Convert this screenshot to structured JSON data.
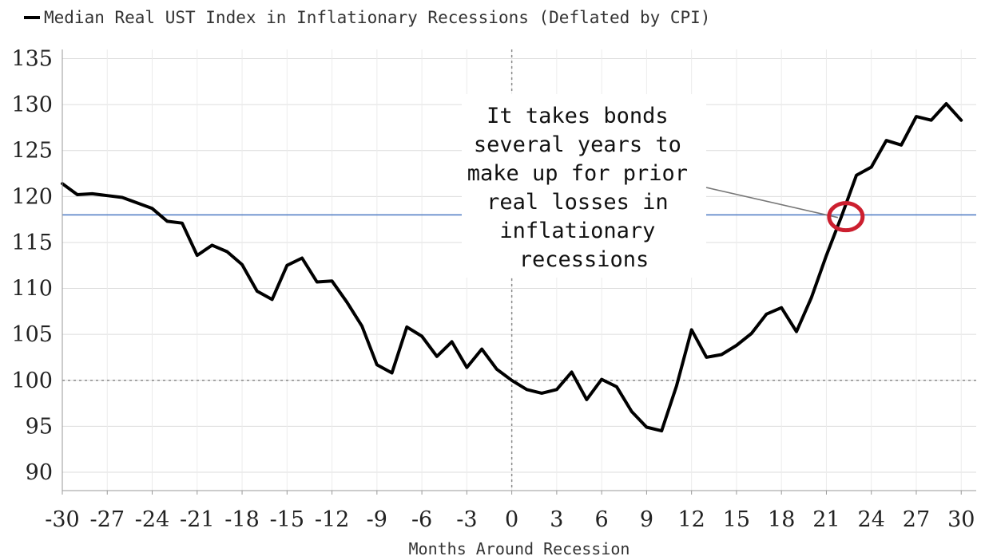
{
  "chart_data": {
    "type": "line",
    "title": "",
    "legend": {
      "position": "top-left",
      "entries": [
        {
          "label": "Median Real UST Index in Inflationary Recessions (Deflated by CPI)",
          "color": "#000000"
        }
      ]
    },
    "xlabel": "Months Around Recession",
    "ylabel": "",
    "xlim": [
      -30,
      31
    ],
    "ylim": [
      88,
      136
    ],
    "xticks": [
      -30,
      -27,
      -24,
      -21,
      -18,
      -15,
      -12,
      -9,
      -6,
      -3,
      0,
      3,
      6,
      9,
      12,
      15,
      18,
      21,
      24,
      27,
      30
    ],
    "xtick_labels": [
      "-30",
      "-27",
      "-24",
      "-21",
      "-18",
      "-15",
      "-12",
      "-9",
      "-6",
      "-3",
      "0",
      "3",
      "6",
      "9",
      "12",
      "15",
      "18",
      "21",
      "24",
      "27",
      "30"
    ],
    "yticks": [
      90,
      95,
      100,
      105,
      110,
      115,
      120,
      125,
      130,
      135
    ],
    "ytick_labels": [
      "90",
      "95",
      "100",
      "105",
      "110",
      "115",
      "120",
      "125",
      "130",
      "135"
    ],
    "grid": true,
    "series": [
      {
        "name": "Median Real UST Index in Inflationary Recessions (Deflated by CPI)",
        "color": "#000000",
        "x": [
          -30,
          -29,
          -28,
          -27,
          -26,
          -25,
          -24,
          -23,
          -22,
          -21,
          -20,
          -19,
          -18,
          -17,
          -16,
          -15,
          -14,
          -13,
          -12,
          -11,
          -10,
          -9,
          -8,
          -7,
          -6,
          -5,
          -4,
          -3,
          -2,
          -1,
          0,
          1,
          2,
          3,
          4,
          5,
          6,
          7,
          8,
          9,
          10,
          11,
          12,
          13,
          14,
          15,
          16,
          17,
          18,
          19,
          20,
          21,
          22,
          23,
          24,
          25,
          26,
          27,
          28,
          29,
          30
        ],
        "values": [
          121.4,
          120.2,
          120.3,
          120.1,
          119.9,
          119.3,
          118.7,
          117.3,
          117.1,
          113.6,
          114.7,
          114.0,
          112.6,
          109.7,
          108.8,
          112.5,
          113.3,
          110.7,
          110.8,
          108.5,
          105.9,
          101.7,
          100.8,
          105.8,
          104.8,
          102.6,
          104.2,
          101.4,
          103.4,
          101.2,
          100.0,
          99.0,
          98.6,
          99.0,
          100.9,
          97.9,
          100.1,
          99.3,
          96.6,
          94.9,
          94.5,
          99.4,
          105.5,
          102.5,
          102.8,
          103.8,
          105.1,
          107.2,
          107.9,
          105.3,
          109.0,
          113.6,
          117.8,
          122.3,
          123.2,
          126.1,
          125.6,
          128.7,
          128.3,
          130.1,
          128.3
        ]
      }
    ],
    "reference_lines": [
      {
        "axis": "y",
        "value": 118,
        "color": "#4a78c2",
        "style": "solid"
      },
      {
        "axis": "y",
        "value": 100,
        "color": "#888888",
        "style": "dotted"
      },
      {
        "axis": "x",
        "value": 0,
        "color": "#888888",
        "style": "dotted"
      }
    ],
    "annotations": [
      {
        "text_lines": [
          "It takes bonds",
          "several years to",
          "make up for prior",
          "real losses in",
          "inflationary",
          "recessions"
        ],
        "target": {
          "x": 22.3,
          "y": 117.8
        },
        "marker": "circle",
        "marker_color": "#cc1f2f"
      }
    ]
  }
}
